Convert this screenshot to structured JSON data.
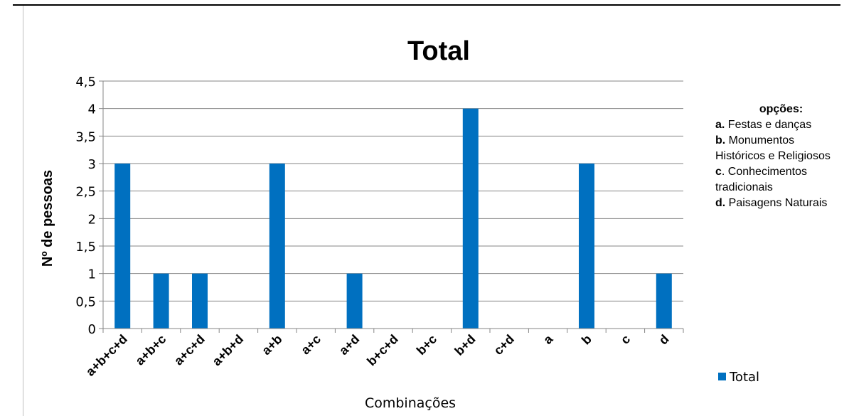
{
  "chart_data": {
    "type": "bar",
    "title": "Total",
    "xlabel": "Combinações",
    "ylabel": "Nº de pessoas",
    "categories": [
      "a+b+c+d",
      "a+b+c",
      "a+c+d",
      "a+b+d",
      "a+b",
      "a+c",
      "a+d",
      "b+c+d",
      "b+c",
      "b+d",
      "c+d",
      "a",
      "b",
      "c",
      "d"
    ],
    "series": [
      {
        "name": "Total",
        "values": [
          3,
          1,
          1,
          0,
          3,
          0,
          1,
          0,
          0,
          4,
          0,
          0,
          3,
          0,
          1
        ]
      }
    ],
    "yticks": [
      "0",
      "0,5",
      "1",
      "1,5",
      "2",
      "2,5",
      "3",
      "3,5",
      "4",
      "4,5"
    ],
    "ylim": [
      0,
      4.5
    ],
    "grid": true,
    "legend": "right",
    "bar_color": "#0070c0"
  },
  "options_box": {
    "heading": "opções:",
    "items": [
      {
        "key": "a.",
        "text": " Festas e danças"
      },
      {
        "key": "b.",
        "text": " Monumentos Históricos e Religiosos"
      },
      {
        "key": "c",
        "text": ". Conhecimentos tradicionais"
      },
      {
        "key": "d.",
        "text": " Paisagens Naturais"
      }
    ]
  }
}
